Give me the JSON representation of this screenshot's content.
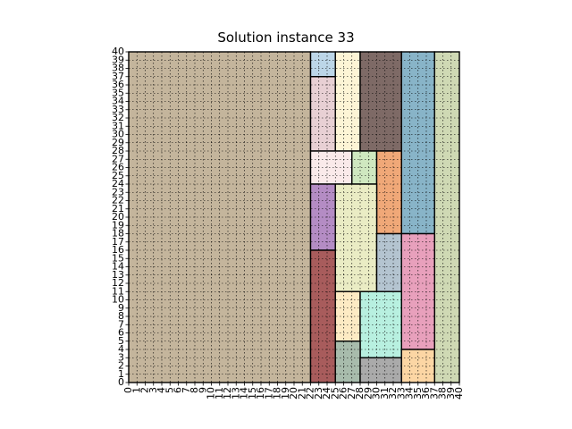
{
  "title": "Solution instance 33",
  "chart_data": {
    "type": "packing",
    "title": "Solution instance 33",
    "xlim": [
      0,
      40
    ],
    "ylim": [
      0,
      40
    ],
    "xticks": [
      0,
      1,
      2,
      3,
      4,
      5,
      6,
      7,
      8,
      9,
      10,
      11,
      12,
      13,
      14,
      15,
      16,
      17,
      18,
      19,
      20,
      21,
      22,
      23,
      24,
      25,
      26,
      27,
      28,
      29,
      30,
      31,
      32,
      33,
      34,
      35,
      36,
      37,
      38,
      39,
      40
    ],
    "yticks": [
      0,
      1,
      2,
      3,
      4,
      5,
      6,
      7,
      8,
      9,
      10,
      11,
      12,
      13,
      14,
      15,
      16,
      17,
      18,
      19,
      20,
      21,
      22,
      23,
      24,
      25,
      26,
      27,
      28,
      29,
      30,
      31,
      32,
      33,
      34,
      35,
      36,
      37,
      38,
      39,
      40
    ],
    "rectangles": [
      {
        "x": 0,
        "y": 0,
        "w": 22,
        "h": 40,
        "color": "#c4b59c"
      },
      {
        "x": 22,
        "y": 37,
        "w": 3,
        "h": 3,
        "color": "#bcd6e8"
      },
      {
        "x": 22,
        "y": 28,
        "w": 3,
        "h": 9,
        "color": "#e8d0d4"
      },
      {
        "x": 25,
        "y": 28,
        "w": 3,
        "h": 12,
        "color": "#fdf5d6"
      },
      {
        "x": 28,
        "y": 28,
        "w": 5,
        "h": 12,
        "color": "#7e6a66"
      },
      {
        "x": 33,
        "y": 18,
        "w": 4,
        "h": 22,
        "color": "#88b4c8"
      },
      {
        "x": 37,
        "y": 0,
        "w": 3,
        "h": 40,
        "color": "#cfd9b4"
      },
      {
        "x": 22,
        "y": 24,
        "w": 5,
        "h": 4,
        "color": "#faeaea"
      },
      {
        "x": 27,
        "y": 24,
        "w": 3,
        "h": 4,
        "color": "#cfe8c0"
      },
      {
        "x": 30,
        "y": 18,
        "w": 3,
        "h": 10,
        "color": "#f0a878"
      },
      {
        "x": 22,
        "y": 16,
        "w": 3,
        "h": 8,
        "color": "#b48cc4"
      },
      {
        "x": 25,
        "y": 11,
        "w": 5,
        "h": 13,
        "color": "#eaecc4"
      },
      {
        "x": 30,
        "y": 11,
        "w": 3,
        "h": 7,
        "color": "#b4c4d0"
      },
      {
        "x": 33,
        "y": 4,
        "w": 4,
        "h": 14,
        "color": "#e8a0bc"
      },
      {
        "x": 22,
        "y": 0,
        "w": 3,
        "h": 16,
        "color": "#a85c5c"
      },
      {
        "x": 25,
        "y": 5,
        "w": 3,
        "h": 6,
        "color": "#fdebc4"
      },
      {
        "x": 28,
        "y": 3,
        "w": 5,
        "h": 8,
        "color": "#b8f0e0"
      },
      {
        "x": 25,
        "y": 0,
        "w": 3,
        "h": 5,
        "color": "#a8bcac"
      },
      {
        "x": 28,
        "y": 0,
        "w": 5,
        "h": 3,
        "color": "#aaaaaa"
      },
      {
        "x": 33,
        "y": 0,
        "w": 4,
        "h": 4,
        "color": "#fcd6a4"
      }
    ]
  }
}
